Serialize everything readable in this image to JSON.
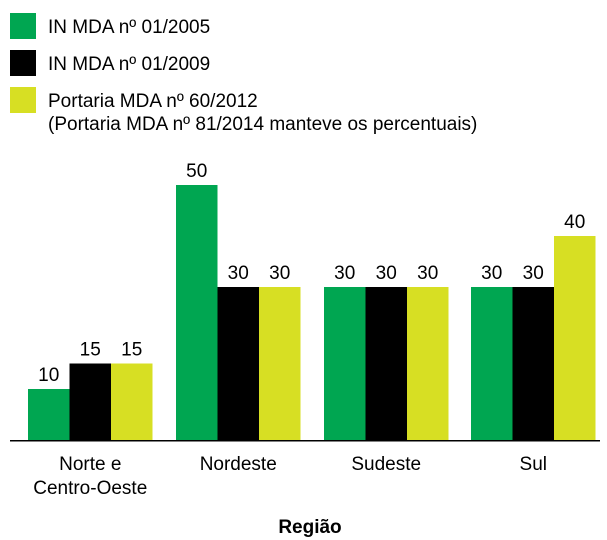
{
  "chart_data": {
    "type": "bar",
    "categories": [
      "Norte e Centro-Oeste",
      "Nordeste",
      "Sudeste",
      "Sul"
    ],
    "category_lines": [
      [
        "Norte e",
        "Centro-Oeste"
      ],
      [
        "Nordeste"
      ],
      [
        "Sudeste"
      ],
      [
        "Sul"
      ]
    ],
    "series": [
      {
        "name": "IN MDA nº 01/2005",
        "color": "#00a651",
        "values": [
          10,
          50,
          30,
          30
        ]
      },
      {
        "name": "IN MDA nº 01/2009",
        "color": "#000000",
        "values": [
          15,
          30,
          30,
          30
        ]
      },
      {
        "name": "Portaria MDA nº 60/2012",
        "name_line2": "(Portaria MDA nº 81/2014 manteve os percentuais)",
        "color": "#d7df23",
        "values": [
          15,
          30,
          30,
          40
        ]
      }
    ],
    "xlabel": "Região",
    "ylabel": "",
    "ylim": [
      0,
      55
    ],
    "legend_position": "top-left",
    "grid": false
  }
}
